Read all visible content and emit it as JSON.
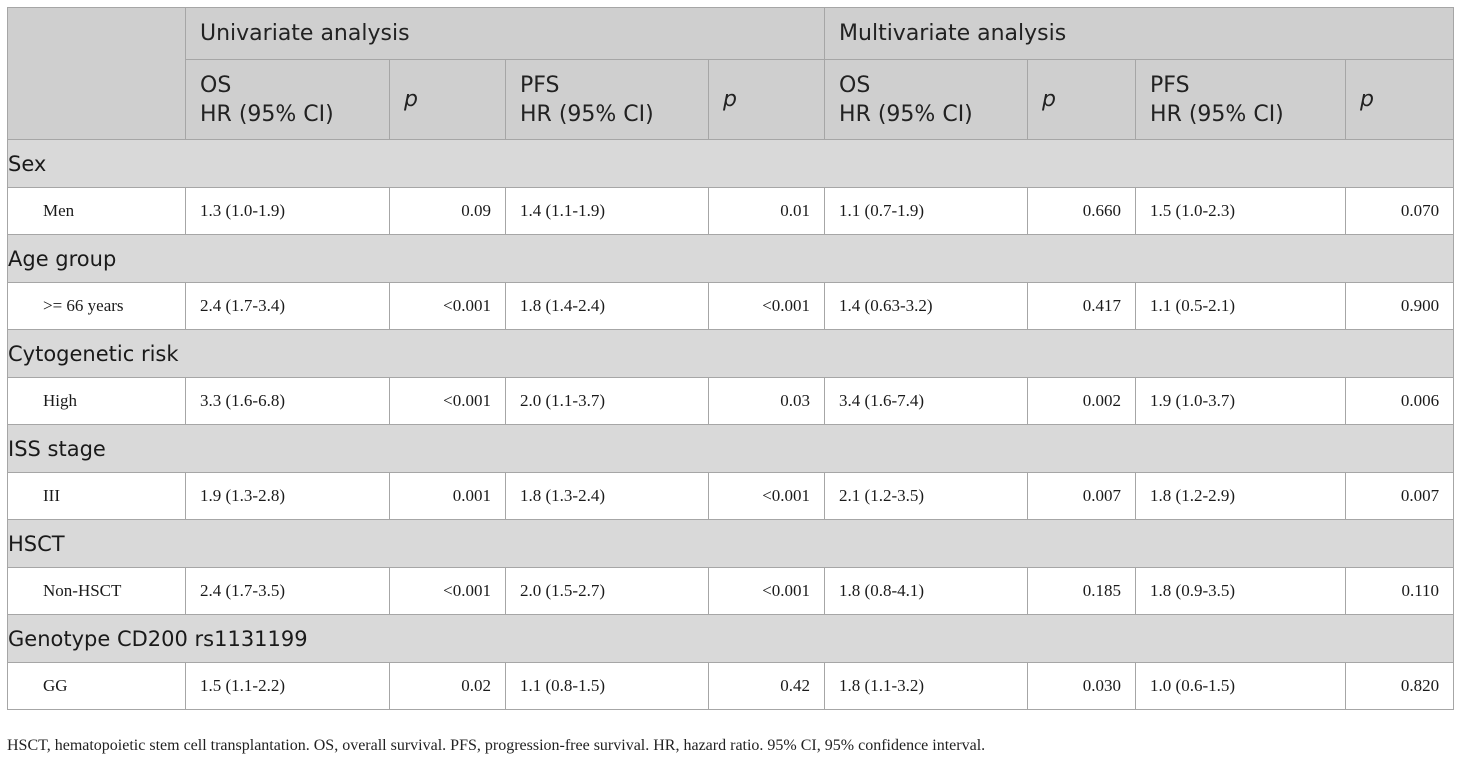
{
  "header": {
    "univariate": "Univariate analysis",
    "multivariate": "Multivariate analysis",
    "os_line1": "OS",
    "pfs_line1": "PFS",
    "hr_line2": "HR (95% CI)",
    "p": "p"
  },
  "groups": [
    {
      "title": "Sex",
      "row": {
        "label": "Men",
        "uni_os_hr": "1.3 (1.0-1.9)",
        "uni_os_p": "0.09",
        "uni_pfs_hr": "1.4 (1.1-1.9)",
        "uni_pfs_p": "0.01",
        "multi_os_hr": "1.1 (0.7-1.9)",
        "multi_os_p": "0.660",
        "multi_pfs_hr": "1.5 (1.0-2.3)",
        "multi_pfs_p": "0.070"
      }
    },
    {
      "title": "Age group",
      "row": {
        "label": ">= 66 years",
        "uni_os_hr": "2.4 (1.7-3.4)",
        "uni_os_p": "<0.001",
        "uni_pfs_hr": "1.8 (1.4-2.4)",
        "uni_pfs_p": "<0.001",
        "multi_os_hr": "1.4 (0.63-3.2)",
        "multi_os_p": "0.417",
        "multi_pfs_hr": "1.1 (0.5-2.1)",
        "multi_pfs_p": "0.900"
      }
    },
    {
      "title": "Cytogenetic risk",
      "row": {
        "label": "High",
        "uni_os_hr": "3.3 (1.6-6.8)",
        "uni_os_p": "<0.001",
        "uni_pfs_hr": "2.0 (1.1-3.7)",
        "uni_pfs_p": "0.03",
        "multi_os_hr": "3.4 (1.6-7.4)",
        "multi_os_p": "0.002",
        "multi_pfs_hr": "1.9 (1.0-3.7)",
        "multi_pfs_p": "0.006"
      }
    },
    {
      "title": "ISS stage",
      "row": {
        "label": "III",
        "uni_os_hr": "1.9 (1.3-2.8)",
        "uni_os_p": "0.001",
        "uni_pfs_hr": "1.8 (1.3-2.4)",
        "uni_pfs_p": "<0.001",
        "multi_os_hr": "2.1 (1.2-3.5)",
        "multi_os_p": "0.007",
        "multi_pfs_hr": "1.8 (1.2-2.9)",
        "multi_pfs_p": "0.007"
      }
    },
    {
      "title": "HSCT",
      "row": {
        "label": "Non-HSCT",
        "uni_os_hr": "2.4 (1.7-3.5)",
        "uni_os_p": "<0.001",
        "uni_pfs_hr": "2.0 (1.5-2.7)",
        "uni_pfs_p": "<0.001",
        "multi_os_hr": "1.8 (0.8-4.1)",
        "multi_os_p": "0.185",
        "multi_pfs_hr": "1.8 (0.9-3.5)",
        "multi_pfs_p": "0.110"
      }
    },
    {
      "title": "Genotype CD200 rs1131199",
      "row": {
        "label": "GG",
        "uni_os_hr": "1.5 (1.1-2.2)",
        "uni_os_p": "0.02",
        "uni_pfs_hr": "1.1 (0.8-1.5)",
        "uni_pfs_p": "0.42",
        "multi_os_hr": "1.8 (1.1-3.2)",
        "multi_os_p": "0.030",
        "multi_pfs_hr": "1.0 (0.6-1.5)",
        "multi_pfs_p": "0.820"
      }
    }
  ],
  "footnote": "HSCT, hematopoietic stem cell transplantation. OS, overall survival. PFS, progression-free survival. HR, hazard ratio. 95% CI, 95% confidence interval."
}
